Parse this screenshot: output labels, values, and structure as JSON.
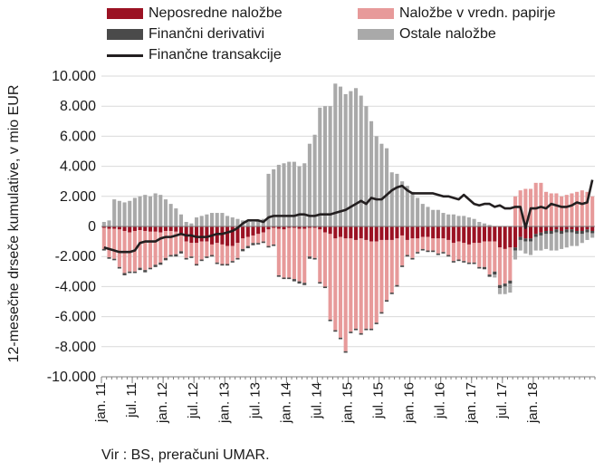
{
  "chart_data": {
    "type": "bar",
    "subtype": "stacked-bar-with-line",
    "ylabel": "12-mesečne drseče kumulative, v mio EUR",
    "ylim": [
      -10000,
      10000
    ],
    "yticks": [
      "10.000",
      "8.000",
      "6.000",
      "4.000",
      "2.000",
      "0",
      "-2.000",
      "-4.000",
      "-6.000",
      "-8.000",
      "-10.000"
    ],
    "xticks": [
      "jan. 11",
      "jul. 11",
      "jan. 12",
      "jul. 12",
      "jan. 13",
      "jul. 13",
      "jan. 14",
      "jul. 14",
      "jan. 15",
      "jul. 15",
      "jan. 16",
      "jul. 16",
      "jan. 17",
      "jul. 17",
      "jan. 18"
    ],
    "grid": true,
    "legend_position": "top",
    "colors": {
      "Neposredne naložbe": "#9b1223",
      "Naložbe v vredn. papirje": "#e79a9a",
      "Finančni derivativi": "#4a4a4a",
      "Ostale naložbe": "#a9a9a9",
      "Finančne transakcije": "#231f20"
    },
    "series": [
      {
        "name": "Neposredne naložbe",
        "kind": "bar",
        "values": [
          -100,
          -150,
          -150,
          -200,
          -300,
          -400,
          -300,
          -250,
          -300,
          -350,
          -350,
          -400,
          -300,
          -300,
          -350,
          -450,
          -1000,
          -1100,
          -1100,
          -1000,
          -1000,
          -1200,
          -1100,
          -1200,
          -1300,
          -1300,
          -1100,
          -800,
          -700,
          -600,
          -500,
          -400,
          -200,
          -100,
          -150,
          -200,
          -100,
          -100,
          -150,
          -150,
          -100,
          -100,
          -200,
          -400,
          -500,
          -800,
          -700,
          -800,
          -800,
          -900,
          -800,
          -900,
          -1000,
          -1000,
          -900,
          -900,
          -900,
          -800,
          -600,
          -900,
          -800,
          -800,
          -700,
          -700,
          -800,
          -800,
          -800,
          -900,
          -1100,
          -1000,
          -1100,
          -1200,
          -1100,
          -1100,
          -1000,
          -1000,
          -1000,
          -1400,
          -1500,
          -1400,
          -1400,
          -700,
          -800,
          -800,
          -500,
          -400,
          -300,
          -300,
          -200,
          -300,
          -200,
          -200,
          -300,
          -300,
          -200,
          -300
        ]
      },
      {
        "name": "Naložbe v vredn. papirje",
        "kind": "bar",
        "values": [
          -1400,
          -1900,
          -2000,
          -2500,
          -2800,
          -2600,
          -2700,
          -2500,
          -2600,
          -2400,
          -2200,
          -2000,
          -1800,
          -1600,
          -1500,
          -1200,
          -1100,
          -900,
          -1400,
          -1200,
          -1000,
          -700,
          -1300,
          -1300,
          -1200,
          -1000,
          -1000,
          -700,
          -600,
          -500,
          -600,
          -600,
          -1100,
          -1100,
          -3100,
          -3200,
          -3300,
          -3400,
          -3500,
          -3600,
          -1900,
          -2000,
          -3500,
          -3600,
          -5700,
          -6100,
          -6700,
          -7500,
          -6200,
          -5900,
          -6300,
          -5900,
          -5800,
          -5400,
          -4800,
          -4000,
          -3500,
          -3100,
          -2000,
          -1000,
          -1300,
          -900,
          -800,
          -900,
          -800,
          -1000,
          -900,
          -1000,
          -1200,
          -1200,
          -1200,
          -1200,
          -1300,
          -1600,
          -1700,
          -2200,
          -2000,
          -2500,
          -2300,
          -2200,
          2000,
          2400,
          2500,
          2500,
          2900,
          2900,
          2300,
          2200,
          2200,
          2000,
          2100,
          2200,
          2300,
          2400,
          2300,
          2000
        ]
      },
      {
        "name": "Finančni derivativi",
        "kind": "bar",
        "values": [
          -100,
          -100,
          -100,
          -100,
          -150,
          -100,
          -100,
          -150,
          -150,
          -100,
          -150,
          -150,
          -150,
          -100,
          -150,
          -150,
          -100,
          -100,
          -100,
          -100,
          -100,
          -100,
          -100,
          -100,
          -100,
          -100,
          -100,
          -150,
          -150,
          -150,
          -100,
          -100,
          -100,
          -100,
          -100,
          -100,
          -100,
          -150,
          -150,
          -150,
          -150,
          -100,
          -100,
          -100,
          -100,
          -100,
          -100,
          -100,
          -100,
          -100,
          -100,
          -100,
          -100,
          -100,
          -100,
          -100,
          -100,
          -100,
          -100,
          -100,
          -100,
          -100,
          -100,
          -100,
          -100,
          -100,
          -100,
          -100,
          -100,
          -100,
          -100,
          -100,
          -100,
          -100,
          -150,
          -150,
          -200,
          -200,
          -200,
          -200,
          -200,
          -200,
          -200,
          -200,
          -200,
          -200,
          -200,
          -200,
          -200,
          -200,
          -200,
          -200,
          -200,
          -200,
          -200,
          -150
        ]
      },
      {
        "name": "Ostale naložbe",
        "kind": "bar",
        "values": [
          300,
          400,
          1800,
          1700,
          1600,
          1700,
          1900,
          2000,
          2100,
          2000,
          2200,
          2100,
          1800,
          1500,
          1200,
          800,
          300,
          200,
          600,
          700,
          800,
          900,
          900,
          900,
          700,
          600,
          500,
          400,
          300,
          300,
          400,
          500,
          3500,
          3800,
          4100,
          4200,
          4300,
          4300,
          4000,
          4200,
          5500,
          6100,
          7900,
          8000,
          8000,
          9500,
          9300,
          8800,
          9000,
          9200,
          8700,
          8000,
          7000,
          6000,
          5500,
          5200,
          3600,
          3500,
          3000,
          2700,
          2300,
          1900,
          1500,
          1300,
          1100,
          1100,
          900,
          800,
          800,
          700,
          700,
          600,
          500,
          300,
          200,
          100,
          -200,
          -400,
          -500,
          -600,
          -600,
          -700,
          -800,
          -900,
          -900,
          -1000,
          -1000,
          -1100,
          -1200,
          -1000,
          -1000,
          -900,
          -800,
          -600,
          -500,
          -300
        ]
      },
      {
        "name": "Finančne transakcije",
        "kind": "line",
        "values": [
          -1400,
          -1500,
          -1600,
          -1700,
          -1700,
          -1700,
          -1600,
          -1100,
          -1000,
          -1000,
          -1000,
          -800,
          -700,
          -700,
          -600,
          -500,
          -600,
          -600,
          -700,
          -700,
          -700,
          -600,
          -500,
          -500,
          -400,
          -300,
          -100,
          200,
          400,
          400,
          400,
          300,
          600,
          700,
          700,
          700,
          700,
          700,
          800,
          800,
          700,
          700,
          800,
          800,
          800,
          900,
          1000,
          1100,
          1300,
          1500,
          1700,
          1500,
          1900,
          1800,
          1800,
          2100,
          2400,
          2600,
          2700,
          2400,
          2200,
          2200,
          2200,
          2200,
          2200,
          2100,
          2000,
          2000,
          1900,
          1800,
          2100,
          1800,
          1500,
          1400,
          1500,
          1500,
          1300,
          1400,
          1200,
          1200,
          1300,
          1300,
          -100,
          1200,
          1200,
          1300,
          1200,
          1500,
          1400,
          1300,
          1300,
          1400,
          1600,
          1500,
          1600,
          3100
        ]
      }
    ]
  },
  "legend": {
    "items": [
      {
        "label": "Neposredne naložbe",
        "color": "#9b1223",
        "kind": "bar"
      },
      {
        "label": "Naložbe v vredn. papirje",
        "color": "#e79a9a",
        "kind": "bar"
      },
      {
        "label": "Finančni derivativi",
        "color": "#4a4a4a",
        "kind": "bar"
      },
      {
        "label": "Ostale naložbe",
        "color": "#a9a9a9",
        "kind": "bar"
      },
      {
        "label": "Finančne transakcije",
        "color": "#231f20",
        "kind": "line"
      }
    ]
  },
  "source": "Vir : BS, preračuni UMAR."
}
